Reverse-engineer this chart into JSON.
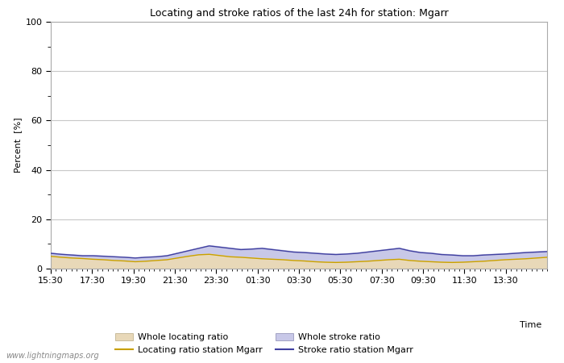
{
  "title": "Locating and stroke ratios of the last 24h for station: Mgarr",
  "xlabel": "Time",
  "ylabel": "Percent  [%]",
  "watermark": "www.lightningmaps.org",
  "xlim": [
    0,
    48
  ],
  "ylim": [
    0,
    100
  ],
  "yticks": [
    0,
    20,
    40,
    60,
    80,
    100
  ],
  "yticks_minor": [
    10,
    30,
    50,
    70,
    90
  ],
  "xtick_labels": [
    "15:30",
    "17:30",
    "19:30",
    "21:30",
    "23:30",
    "01:30",
    "03:30",
    "05:30",
    "07:30",
    "09:30",
    "11:30",
    "13:30"
  ],
  "xtick_positions": [
    0,
    4,
    8,
    12,
    16,
    20,
    24,
    28,
    32,
    36,
    40,
    44
  ],
  "bg_color": "#ffffff",
  "plot_bg_color": "#ffffff",
  "grid_color": "#c8c8c8",
  "whole_locating_fill_color": "#e8d8b8",
  "whole_stroke_fill_color": "#c8c8e8",
  "locating_line_color": "#c8a000",
  "stroke_line_color": "#4040a0",
  "legend_labels": [
    "Whole locating ratio",
    "Locating ratio station Mgarr",
    "Whole stroke ratio",
    "Stroke ratio station Mgarr"
  ],
  "whole_locating_ratio": [
    5.2,
    4.8,
    4.5,
    4.3,
    4.0,
    3.8,
    3.5,
    3.3,
    3.0,
    3.2,
    3.5,
    3.8,
    4.5,
    5.2,
    5.8,
    6.0,
    5.5,
    5.0,
    4.8,
    4.5,
    4.2,
    4.0,
    3.8,
    3.5,
    3.3,
    3.0,
    2.8,
    2.7,
    2.8,
    3.0,
    3.2,
    3.5,
    3.8,
    4.0,
    3.5,
    3.2,
    3.0,
    2.8,
    2.7,
    2.8,
    3.0,
    3.2,
    3.5,
    3.8,
    4.0,
    4.2,
    4.5,
    4.8
  ],
  "whole_stroke_ratio": [
    6.5,
    6.0,
    5.8,
    5.5,
    5.5,
    5.3,
    5.0,
    4.8,
    4.5,
    4.8,
    5.0,
    5.5,
    6.5,
    7.5,
    8.5,
    9.5,
    9.0,
    8.5,
    8.0,
    8.2,
    8.5,
    8.0,
    7.5,
    7.0,
    6.8,
    6.5,
    6.2,
    6.0,
    6.2,
    6.5,
    7.0,
    7.5,
    8.0,
    8.5,
    7.5,
    6.8,
    6.5,
    6.0,
    5.8,
    5.5,
    5.5,
    5.8,
    6.0,
    6.2,
    6.5,
    6.8,
    7.0,
    7.2
  ],
  "locating_station": [
    5.0,
    4.6,
    4.3,
    4.1,
    3.8,
    3.6,
    3.3,
    3.1,
    2.8,
    3.0,
    3.3,
    3.6,
    4.3,
    5.0,
    5.6,
    5.8,
    5.3,
    4.8,
    4.6,
    4.3,
    4.0,
    3.8,
    3.6,
    3.3,
    3.1,
    2.8,
    2.6,
    2.5,
    2.6,
    2.8,
    3.0,
    3.3,
    3.6,
    3.8,
    3.3,
    3.0,
    2.8,
    2.6,
    2.5,
    2.6,
    2.8,
    3.0,
    3.3,
    3.6,
    3.8,
    4.0,
    4.3,
    4.6
  ],
  "stroke_station": [
    6.2,
    5.8,
    5.5,
    5.2,
    5.2,
    5.0,
    4.8,
    4.6,
    4.3,
    4.6,
    4.8,
    5.2,
    6.2,
    7.2,
    8.2,
    9.2,
    8.7,
    8.2,
    7.7,
    7.9,
    8.2,
    7.7,
    7.2,
    6.7,
    6.5,
    6.2,
    5.9,
    5.7,
    5.9,
    6.2,
    6.7,
    7.2,
    7.7,
    8.2,
    7.2,
    6.5,
    6.2,
    5.7,
    5.5,
    5.2,
    5.2,
    5.5,
    5.7,
    5.9,
    6.2,
    6.5,
    6.7,
    6.9
  ]
}
